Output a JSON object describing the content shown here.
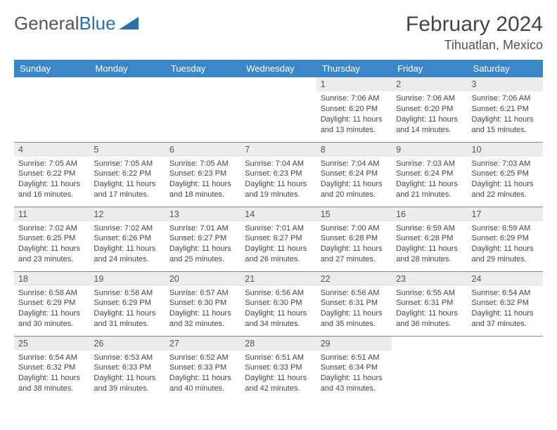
{
  "logo": {
    "text1": "General",
    "text2": "Blue"
  },
  "title": "February 2024",
  "location": "Tihuatlan, Mexico",
  "headerColor": "#3b86c6",
  "dayHeaders": [
    "Sunday",
    "Monday",
    "Tuesday",
    "Wednesday",
    "Thursday",
    "Friday",
    "Saturday"
  ],
  "weeks": [
    [
      null,
      null,
      null,
      null,
      {
        "n": "1",
        "sunrise": "7:06 AM",
        "sunset": "6:20 PM",
        "daylight": "11 hours and 13 minutes."
      },
      {
        "n": "2",
        "sunrise": "7:06 AM",
        "sunset": "6:20 PM",
        "daylight": "11 hours and 14 minutes."
      },
      {
        "n": "3",
        "sunrise": "7:06 AM",
        "sunset": "6:21 PM",
        "daylight": "11 hours and 15 minutes."
      }
    ],
    [
      {
        "n": "4",
        "sunrise": "7:05 AM",
        "sunset": "6:22 PM",
        "daylight": "11 hours and 16 minutes."
      },
      {
        "n": "5",
        "sunrise": "7:05 AM",
        "sunset": "6:22 PM",
        "daylight": "11 hours and 17 minutes."
      },
      {
        "n": "6",
        "sunrise": "7:05 AM",
        "sunset": "6:23 PM",
        "daylight": "11 hours and 18 minutes."
      },
      {
        "n": "7",
        "sunrise": "7:04 AM",
        "sunset": "6:23 PM",
        "daylight": "11 hours and 19 minutes."
      },
      {
        "n": "8",
        "sunrise": "7:04 AM",
        "sunset": "6:24 PM",
        "daylight": "11 hours and 20 minutes."
      },
      {
        "n": "9",
        "sunrise": "7:03 AM",
        "sunset": "6:24 PM",
        "daylight": "11 hours and 21 minutes."
      },
      {
        "n": "10",
        "sunrise": "7:03 AM",
        "sunset": "6:25 PM",
        "daylight": "11 hours and 22 minutes."
      }
    ],
    [
      {
        "n": "11",
        "sunrise": "7:02 AM",
        "sunset": "6:25 PM",
        "daylight": "11 hours and 23 minutes."
      },
      {
        "n": "12",
        "sunrise": "7:02 AM",
        "sunset": "6:26 PM",
        "daylight": "11 hours and 24 minutes."
      },
      {
        "n": "13",
        "sunrise": "7:01 AM",
        "sunset": "6:27 PM",
        "daylight": "11 hours and 25 minutes."
      },
      {
        "n": "14",
        "sunrise": "7:01 AM",
        "sunset": "6:27 PM",
        "daylight": "11 hours and 26 minutes."
      },
      {
        "n": "15",
        "sunrise": "7:00 AM",
        "sunset": "6:28 PM",
        "daylight": "11 hours and 27 minutes."
      },
      {
        "n": "16",
        "sunrise": "6:59 AM",
        "sunset": "6:28 PM",
        "daylight": "11 hours and 28 minutes."
      },
      {
        "n": "17",
        "sunrise": "6:59 AM",
        "sunset": "6:29 PM",
        "daylight": "11 hours and 29 minutes."
      }
    ],
    [
      {
        "n": "18",
        "sunrise": "6:58 AM",
        "sunset": "6:29 PM",
        "daylight": "11 hours and 30 minutes."
      },
      {
        "n": "19",
        "sunrise": "6:58 AM",
        "sunset": "6:29 PM",
        "daylight": "11 hours and 31 minutes."
      },
      {
        "n": "20",
        "sunrise": "6:57 AM",
        "sunset": "6:30 PM",
        "daylight": "11 hours and 32 minutes."
      },
      {
        "n": "21",
        "sunrise": "6:56 AM",
        "sunset": "6:30 PM",
        "daylight": "11 hours and 34 minutes."
      },
      {
        "n": "22",
        "sunrise": "6:56 AM",
        "sunset": "6:31 PM",
        "daylight": "11 hours and 35 minutes."
      },
      {
        "n": "23",
        "sunrise": "6:55 AM",
        "sunset": "6:31 PM",
        "daylight": "11 hours and 36 minutes."
      },
      {
        "n": "24",
        "sunrise": "6:54 AM",
        "sunset": "6:32 PM",
        "daylight": "11 hours and 37 minutes."
      }
    ],
    [
      {
        "n": "25",
        "sunrise": "6:54 AM",
        "sunset": "6:32 PM",
        "daylight": "11 hours and 38 minutes."
      },
      {
        "n": "26",
        "sunrise": "6:53 AM",
        "sunset": "6:33 PM",
        "daylight": "11 hours and 39 minutes."
      },
      {
        "n": "27",
        "sunrise": "6:52 AM",
        "sunset": "6:33 PM",
        "daylight": "11 hours and 40 minutes."
      },
      {
        "n": "28",
        "sunrise": "6:51 AM",
        "sunset": "6:33 PM",
        "daylight": "11 hours and 42 minutes."
      },
      {
        "n": "29",
        "sunrise": "6:51 AM",
        "sunset": "6:34 PM",
        "daylight": "11 hours and 43 minutes."
      },
      null,
      null
    ]
  ]
}
